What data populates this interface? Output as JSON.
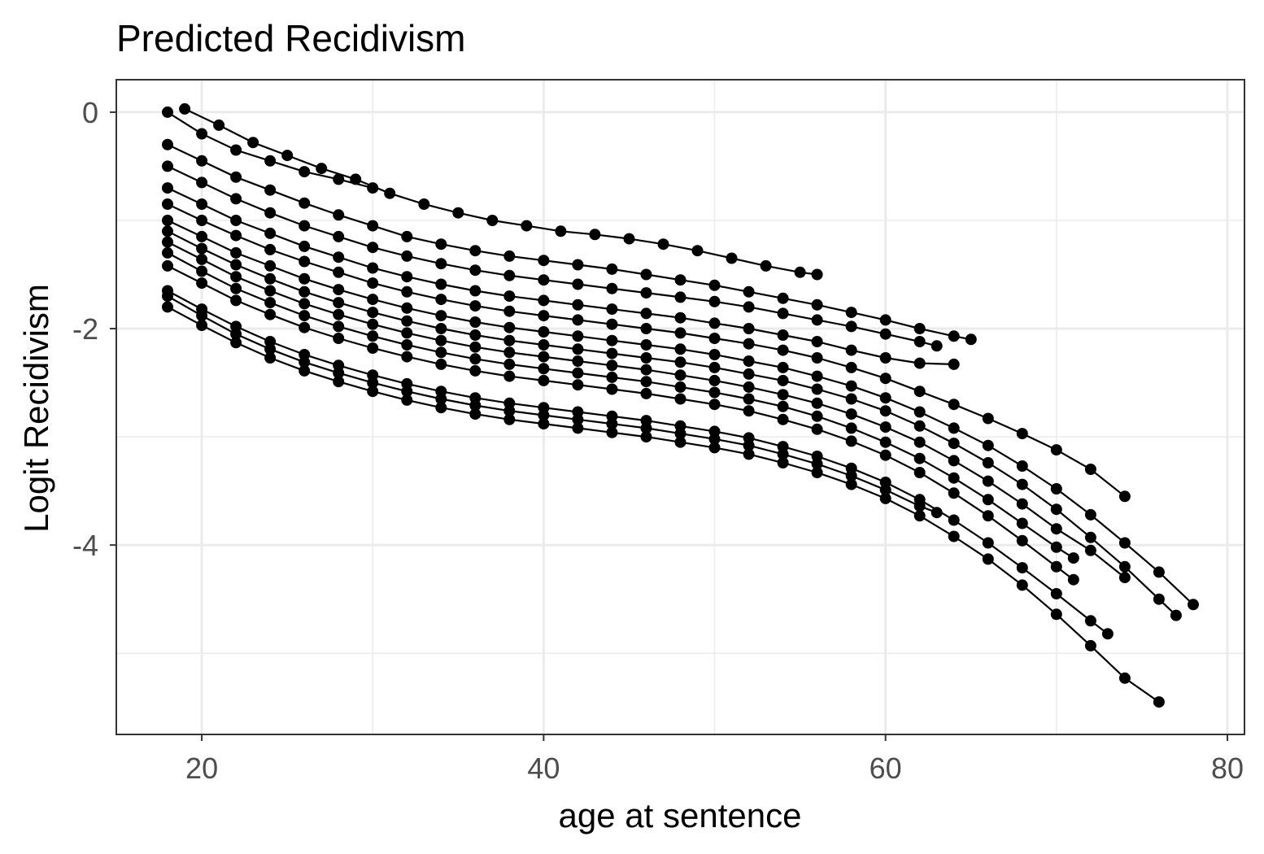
{
  "chart_data": {
    "type": "line",
    "title": "Predicted Recidivism",
    "xlabel": "age at sentence",
    "ylabel": "Logit Recidivism",
    "xlim": [
      15,
      81
    ],
    "ylim": [
      -5.75,
      0.3
    ],
    "x_ticks": [
      20,
      40,
      60,
      80
    ],
    "y_ticks": [
      0,
      -2,
      -4
    ],
    "x_tick_labels": [
      "20",
      "40",
      "60",
      "80"
    ],
    "y_tick_labels": [
      "0",
      "-2",
      "-4"
    ],
    "grid": true,
    "legend": "none",
    "markers": true,
    "series": [
      {
        "x": [
          18,
          20,
          22,
          24,
          26,
          28,
          30
        ],
        "y": [
          0.0,
          -0.2,
          -0.35,
          -0.45,
          -0.55,
          -0.62,
          -0.7
        ]
      },
      {
        "x": [
          19,
          21,
          23,
          25,
          27,
          29,
          31,
          33,
          35,
          37,
          39,
          41,
          43,
          45,
          47,
          49,
          51,
          53,
          55,
          56
        ],
        "y": [
          0.03,
          -0.12,
          -0.28,
          -0.4,
          -0.52,
          -0.62,
          -0.75,
          -0.85,
          -0.93,
          -1.0,
          -1.05,
          -1.1,
          -1.13,
          -1.17,
          -1.22,
          -1.28,
          -1.35,
          -1.42,
          -1.48,
          -1.5
        ]
      },
      {
        "x": [
          18,
          20,
          22,
          24,
          26,
          28,
          30,
          32,
          34,
          36,
          38,
          40,
          42,
          44,
          46,
          48,
          50,
          52,
          54,
          56,
          58,
          60,
          62,
          64,
          65
        ],
        "y": [
          -0.3,
          -0.45,
          -0.6,
          -0.72,
          -0.84,
          -0.95,
          -1.05,
          -1.15,
          -1.22,
          -1.28,
          -1.33,
          -1.37,
          -1.41,
          -1.45,
          -1.5,
          -1.55,
          -1.6,
          -1.66,
          -1.72,
          -1.78,
          -1.85,
          -1.92,
          -2.0,
          -2.07,
          -2.1
        ]
      },
      {
        "x": [
          18,
          20,
          22,
          24,
          26,
          28,
          30,
          32,
          34,
          36,
          38,
          40,
          42,
          44,
          46,
          48,
          50,
          52,
          54,
          56,
          58,
          60,
          62,
          63
        ],
        "y": [
          -0.5,
          -0.65,
          -0.8,
          -0.93,
          -1.05,
          -1.15,
          -1.25,
          -1.33,
          -1.4,
          -1.46,
          -1.51,
          -1.55,
          -1.59,
          -1.63,
          -1.67,
          -1.71,
          -1.75,
          -1.8,
          -1.86,
          -1.92,
          -1.98,
          -2.05,
          -2.12,
          -2.16
        ]
      },
      {
        "x": [
          18,
          20,
          22,
          24,
          26,
          28,
          30,
          32,
          34,
          36,
          38,
          40,
          42,
          44,
          46,
          48,
          50,
          52,
          54,
          56,
          58,
          60,
          62,
          64
        ],
        "y": [
          -0.7,
          -0.85,
          -1.0,
          -1.12,
          -1.24,
          -1.34,
          -1.44,
          -1.52,
          -1.59,
          -1.65,
          -1.7,
          -1.74,
          -1.78,
          -1.82,
          -1.86,
          -1.9,
          -1.95,
          -2.0,
          -2.06,
          -2.12,
          -2.2,
          -2.27,
          -2.32,
          -2.33
        ]
      },
      {
        "x": [
          18,
          20,
          22,
          24,
          26,
          28,
          30,
          32,
          34,
          36,
          38,
          40,
          42,
          44,
          46,
          48,
          50,
          52,
          54,
          56,
          58,
          60,
          62,
          64,
          66,
          68,
          70,
          72,
          74
        ],
        "y": [
          -0.85,
          -1.0,
          -1.14,
          -1.27,
          -1.38,
          -1.48,
          -1.58,
          -1.66,
          -1.73,
          -1.79,
          -1.84,
          -1.88,
          -1.92,
          -1.96,
          -2.0,
          -2.04,
          -2.09,
          -2.14,
          -2.2,
          -2.27,
          -2.36,
          -2.46,
          -2.58,
          -2.7,
          -2.83,
          -2.97,
          -3.12,
          -3.3,
          -3.55
        ]
      },
      {
        "x": [
          18,
          20,
          22,
          24,
          26,
          28,
          30,
          32,
          34,
          36,
          38,
          40,
          42,
          44,
          46,
          48,
          50,
          52,
          54,
          56,
          58,
          60,
          62,
          64,
          66,
          68,
          70,
          72,
          74,
          76,
          78
        ],
        "y": [
          -1.0,
          -1.15,
          -1.3,
          -1.42,
          -1.54,
          -1.64,
          -1.73,
          -1.81,
          -1.88,
          -1.94,
          -1.99,
          -2.03,
          -2.07,
          -2.11,
          -2.15,
          -2.19,
          -2.24,
          -2.3,
          -2.36,
          -2.44,
          -2.53,
          -2.64,
          -2.77,
          -2.92,
          -3.08,
          -3.27,
          -3.48,
          -3.72,
          -3.98,
          -4.25,
          -4.55
        ]
      },
      {
        "x": [
          18,
          20,
          22,
          24,
          26,
          28,
          30,
          32,
          34,
          36,
          38,
          40,
          42,
          44,
          46,
          48,
          50,
          52,
          54,
          56,
          58,
          60,
          62,
          64,
          66,
          68,
          70,
          72,
          74,
          76,
          77
        ],
        "y": [
          -1.1,
          -1.26,
          -1.41,
          -1.54,
          -1.66,
          -1.76,
          -1.85,
          -1.93,
          -2.0,
          -2.06,
          -2.11,
          -2.15,
          -2.19,
          -2.23,
          -2.27,
          -2.31,
          -2.36,
          -2.42,
          -2.48,
          -2.56,
          -2.65,
          -2.76,
          -2.9,
          -3.06,
          -3.24,
          -3.44,
          -3.67,
          -3.93,
          -4.2,
          -4.5,
          -4.65
        ]
      },
      {
        "x": [
          18,
          20,
          22,
          24,
          26,
          28,
          30,
          32,
          34,
          36,
          38,
          40,
          42,
          44,
          46,
          48,
          50,
          52,
          54,
          56,
          58,
          60,
          62,
          64,
          66,
          68,
          70,
          72,
          74
        ],
        "y": [
          -1.2,
          -1.36,
          -1.52,
          -1.65,
          -1.77,
          -1.87,
          -1.96,
          -2.04,
          -2.11,
          -2.17,
          -2.22,
          -2.26,
          -2.3,
          -2.34,
          -2.38,
          -2.43,
          -2.48,
          -2.54,
          -2.61,
          -2.69,
          -2.79,
          -2.91,
          -3.05,
          -3.22,
          -3.41,
          -3.62,
          -3.85,
          -4.05,
          -4.3
        ]
      },
      {
        "x": [
          18,
          20,
          22,
          24,
          26,
          28,
          30,
          32,
          34,
          36,
          38,
          40,
          42,
          44,
          46,
          48,
          50,
          52,
          54,
          56,
          58,
          60,
          62,
          64,
          66,
          68,
          70,
          71
        ],
        "y": [
          -1.3,
          -1.47,
          -1.63,
          -1.76,
          -1.88,
          -1.98,
          -2.07,
          -2.15,
          -2.22,
          -2.28,
          -2.33,
          -2.37,
          -2.41,
          -2.45,
          -2.49,
          -2.54,
          -2.59,
          -2.65,
          -2.72,
          -2.81,
          -2.92,
          -3.05,
          -3.2,
          -3.38,
          -3.58,
          -3.8,
          -4.02,
          -4.12
        ]
      },
      {
        "x": [
          18,
          20,
          22,
          24,
          26,
          28,
          30,
          32,
          34,
          36,
          38,
          40,
          42,
          44,
          46,
          48,
          50,
          52,
          54,
          56,
          58,
          60,
          62,
          64,
          66,
          68,
          70,
          71
        ],
        "y": [
          -1.42,
          -1.58,
          -1.74,
          -1.87,
          -1.99,
          -2.09,
          -2.18,
          -2.26,
          -2.33,
          -2.39,
          -2.44,
          -2.48,
          -2.52,
          -2.56,
          -2.6,
          -2.65,
          -2.7,
          -2.76,
          -2.84,
          -2.93,
          -3.04,
          -3.17,
          -3.33,
          -3.52,
          -3.73,
          -3.96,
          -4.2,
          -4.32
        ]
      },
      {
        "x": [
          18,
          20,
          22,
          24,
          26,
          28,
          30,
          32,
          34,
          36,
          38,
          40,
          42,
          44,
          46,
          48,
          50,
          52,
          54,
          56,
          58,
          60,
          62,
          64,
          66,
          68,
          70,
          72,
          73
        ],
        "y": [
          -1.65,
          -1.82,
          -1.98,
          -2.12,
          -2.24,
          -2.34,
          -2.43,
          -2.51,
          -2.58,
          -2.64,
          -2.69,
          -2.73,
          -2.77,
          -2.81,
          -2.85,
          -2.9,
          -2.95,
          -3.01,
          -3.09,
          -3.18,
          -3.29,
          -3.42,
          -3.58,
          -3.77,
          -3.98,
          -4.21,
          -4.45,
          -4.7,
          -4.82
        ]
      },
      {
        "x": [
          18,
          20,
          22,
          24,
          26,
          28,
          30,
          32,
          34,
          36,
          38,
          40,
          42,
          44,
          46,
          48,
          50,
          52,
          54,
          56,
          58,
          60,
          62,
          64,
          66,
          68,
          70,
          72,
          74,
          76
        ],
        "y": [
          -1.8,
          -1.97,
          -2.13,
          -2.27,
          -2.39,
          -2.49,
          -2.58,
          -2.66,
          -2.73,
          -2.79,
          -2.84,
          -2.88,
          -2.92,
          -2.96,
          -3.0,
          -3.05,
          -3.1,
          -3.16,
          -3.24,
          -3.33,
          -3.44,
          -3.57,
          -3.73,
          -3.92,
          -4.13,
          -4.37,
          -4.64,
          -4.93,
          -5.23,
          -5.45
        ]
      },
      {
        "x": [
          18,
          20,
          22,
          24,
          26,
          28,
          30,
          32,
          34,
          36,
          38,
          40,
          42,
          44,
          46,
          48,
          50,
          52,
          54,
          56,
          58,
          60,
          62,
          63
        ],
        "y": [
          -1.7,
          -1.88,
          -2.05,
          -2.19,
          -2.31,
          -2.41,
          -2.5,
          -2.58,
          -2.65,
          -2.71,
          -2.76,
          -2.8,
          -2.84,
          -2.88,
          -2.92,
          -2.97,
          -3.02,
          -3.08,
          -3.16,
          -3.25,
          -3.36,
          -3.49,
          -3.64,
          -3.7
        ]
      }
    ]
  }
}
